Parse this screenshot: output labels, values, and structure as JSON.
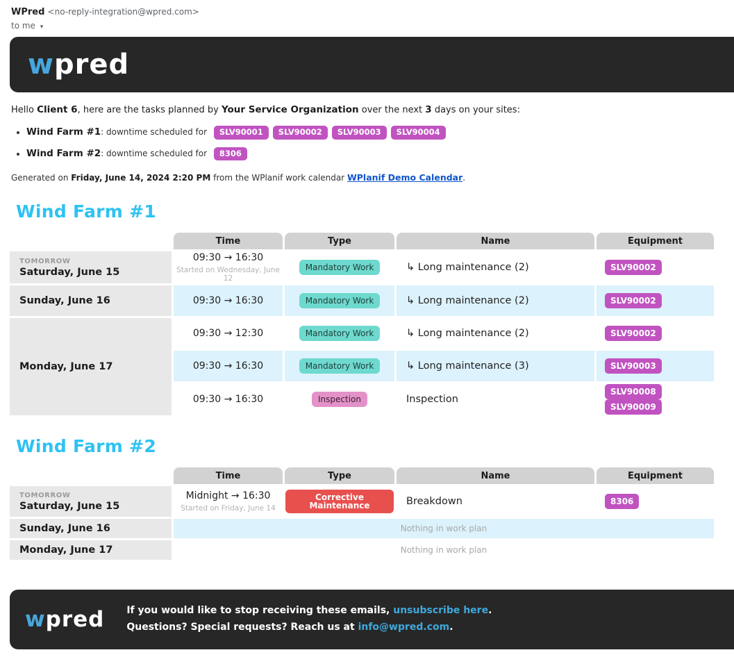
{
  "icons": {
    "dropdown_arrow": "▾"
  },
  "colors": {
    "accent_cyan": "#2ec2f2",
    "logo_blue": "#47a6dc",
    "dark_bg": "#272727",
    "equipment_badge_bg": "#c153c1",
    "row_alt_bg": "#dcf2fc",
    "date_cell_bg": "#e8e8e8",
    "header_cell_bg": "#d2d2d2",
    "calendar_link_blue": "#1155cc",
    "footer_link_cyan": "#3fa9dc",
    "type_badges": {
      "mandatory": {
        "bg": "#6ed9ce",
        "fg": "#1e3d39"
      },
      "inspection": {
        "bg": "#e391c9",
        "fg": "#3c2033"
      },
      "corrective": {
        "bg": "#e8504e",
        "fg": "#ffffff"
      }
    }
  },
  "email_meta": {
    "sender_name": "WPred",
    "sender_address": "<no-reply-integration@wpred.com>",
    "to_me": "to me"
  },
  "logo": {
    "first": "w",
    "rest": "pred"
  },
  "intro": {
    "hello": "Hello ",
    "client": "Client 6",
    "planned_by": ", here are the tasks planned by ",
    "org": "Your Service Organization",
    "over_next": " over the next ",
    "days": "3",
    "days_suffix": " days on your sites:",
    "sites": [
      {
        "name": "Wind Farm #1",
        "note": ": downtime scheduled for",
        "equipment": [
          "SLV90001",
          "SLV90002",
          "SLV90003",
          "SLV90004"
        ]
      },
      {
        "name": "Wind Farm #2",
        "note": ": downtime scheduled for",
        "equipment": [
          "8306"
        ]
      }
    ],
    "generated": {
      "prefix": "Generated on ",
      "date": "Friday, June 14, 2024 2:20 PM",
      "middle": " from the WPlanif work calendar ",
      "link": "WPlanif Demo Calendar",
      "suffix": "."
    }
  },
  "farms": [
    {
      "title": "Wind Farm #1",
      "columns": [
        "Time",
        "Type",
        "Name",
        "Equipment"
      ],
      "days": [
        {
          "tag": "TOMORROW",
          "date": "Saturday, June 15",
          "rows": [
            {
              "time": "09:30 → 16:30",
              "time_note": "Started on Wednesday, June 12",
              "type": "Mandatory Work",
              "type_key": "mandatory",
              "name": "↳ Long maintenance (2)",
              "equipment": [
                "SLV90002"
              ]
            }
          ]
        },
        {
          "tag": "",
          "date": "Sunday, June 16",
          "rows": [
            {
              "time": "09:30 → 16:30",
              "type": "Mandatory Work",
              "type_key": "mandatory",
              "name": "↳ Long maintenance (2)",
              "equipment": [
                "SLV90002"
              ]
            }
          ]
        },
        {
          "tag": "",
          "date": "Monday, June 17",
          "rows": [
            {
              "time": "09:30 → 12:30",
              "type": "Mandatory Work",
              "type_key": "mandatory",
              "name": "↳ Long maintenance (2)",
              "equipment": [
                "SLV90002"
              ]
            },
            {
              "time": "09:30 → 16:30",
              "type": "Mandatory Work",
              "type_key": "mandatory",
              "name": "↳ Long maintenance (3)",
              "equipment": [
                "SLV90003"
              ]
            },
            {
              "time": "09:30 → 16:30",
              "type": "Inspection",
              "type_key": "inspection",
              "name": "Inspection",
              "equipment": [
                "SLV90008",
                "SLV90009"
              ]
            }
          ]
        }
      ]
    },
    {
      "title": "Wind Farm #2",
      "columns": [
        "Time",
        "Type",
        "Name",
        "Equipment"
      ],
      "days": [
        {
          "tag": "TOMORROW",
          "date": "Saturday, June 15",
          "rows": [
            {
              "time": "Midnight → 16:30",
              "time_note": "Started on Friday, June 14",
              "type": "Corrective Maintenance",
              "type_key": "corrective",
              "name": "Breakdown",
              "equipment": [
                "8306"
              ]
            }
          ]
        },
        {
          "tag": "",
          "date": "Sunday, June 16",
          "rows": [
            {
              "empty": "Nothing in work plan"
            }
          ]
        },
        {
          "tag": "",
          "date": "Monday, June 17",
          "rows": [
            {
              "empty": "Nothing in work plan"
            }
          ]
        }
      ]
    }
  ],
  "footer": {
    "line1_prefix": "If you would like to stop receiving these emails, ",
    "line1_link": "unsubscribe here",
    "line1_suffix": ".",
    "line2_prefix": "Questions? Special requests? Reach us at ",
    "line2_link": "info@wpred.com",
    "line2_suffix": "."
  }
}
